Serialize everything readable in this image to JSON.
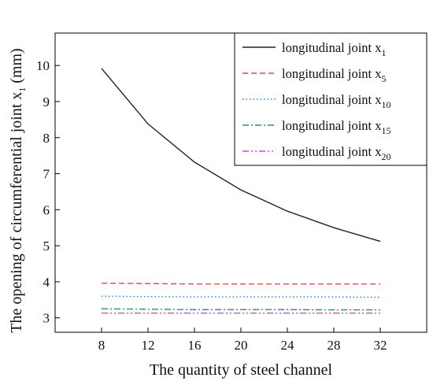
{
  "chart_data": {
    "type": "line",
    "xlabel": "The quantity of steel channel",
    "ylabel_main": "The opening of circumferential joint x",
    "ylabel_sub": "1",
    "ylabel_unit": " (mm)",
    "x": [
      8,
      12,
      16,
      20,
      24,
      28,
      32
    ],
    "xticks": [
      8,
      12,
      16,
      20,
      24,
      28,
      32
    ],
    "yticks": [
      3,
      4,
      5,
      6,
      7,
      8,
      9,
      10
    ],
    "xlim": [
      4,
      36
    ],
    "ylim": [
      2.6,
      10.9
    ],
    "grid": false,
    "legend_position": "top-right",
    "series": [
      {
        "name": "longitudinal joint x",
        "sub": "1",
        "color": "#222222",
        "dash": "solid",
        "values": [
          9.92,
          8.38,
          7.32,
          6.55,
          5.96,
          5.5,
          5.12
        ]
      },
      {
        "name": "longitudinal joint x",
        "sub": "5",
        "color": "#e8474b",
        "dash": "dash",
        "values": [
          3.96,
          3.95,
          3.94,
          3.94,
          3.94,
          3.94,
          3.94
        ]
      },
      {
        "name": "longitudinal joint x",
        "sub": "10",
        "color": "#2e7de0",
        "dash": "dot",
        "values": [
          3.6,
          3.59,
          3.58,
          3.58,
          3.58,
          3.58,
          3.57
        ]
      },
      {
        "name": "longitudinal joint x",
        "sub": "15",
        "color": "#1aa04a",
        "dash": "dashdot",
        "values": [
          3.25,
          3.24,
          3.23,
          3.23,
          3.23,
          3.22,
          3.22
        ]
      },
      {
        "name": "longitudinal joint x",
        "sub": "20",
        "color": "#c653d6",
        "dash": "dashdotdot",
        "values": [
          3.13,
          3.13,
          3.13,
          3.13,
          3.13,
          3.13,
          3.13
        ]
      }
    ]
  }
}
